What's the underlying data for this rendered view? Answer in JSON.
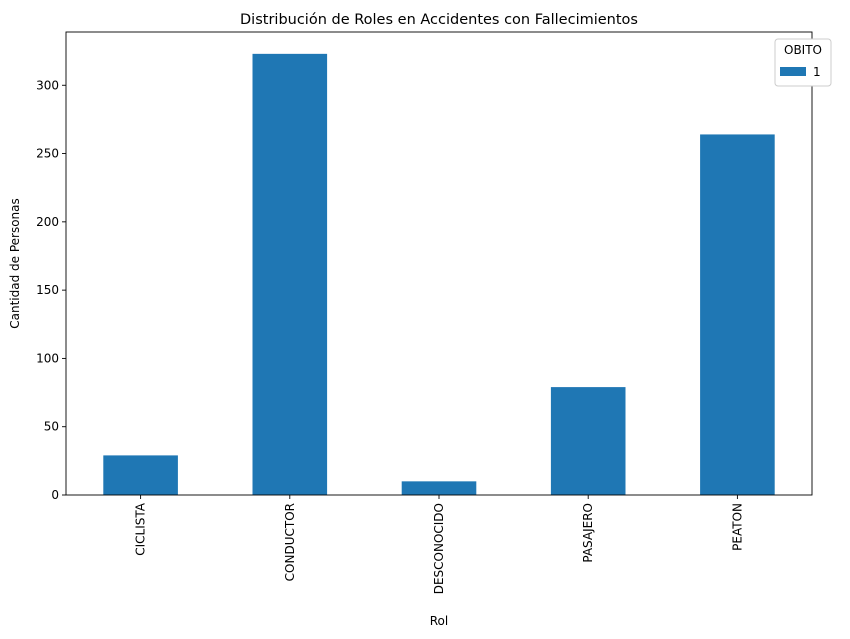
{
  "chart_data": {
    "type": "bar",
    "title": "Distribución de Roles en Accidentes con Fallecimientos",
    "xlabel": "Rol",
    "ylabel": "Cantidad de Personas",
    "categories": [
      "CICLISTA",
      "CONDUCTOR",
      "DESCONOCIDO",
      "PASAJERO",
      "PEATON"
    ],
    "series": [
      {
        "name": "1",
        "values": [
          29,
          323,
          10,
          79,
          264
        ],
        "color": "#1f77b4"
      }
    ],
    "ylim": [
      0,
      339
    ],
    "yticks": [
      0,
      50,
      100,
      150,
      200,
      250,
      300
    ],
    "grid": false,
    "legend": {
      "title": "OBITO",
      "placement": "top-right"
    }
  }
}
